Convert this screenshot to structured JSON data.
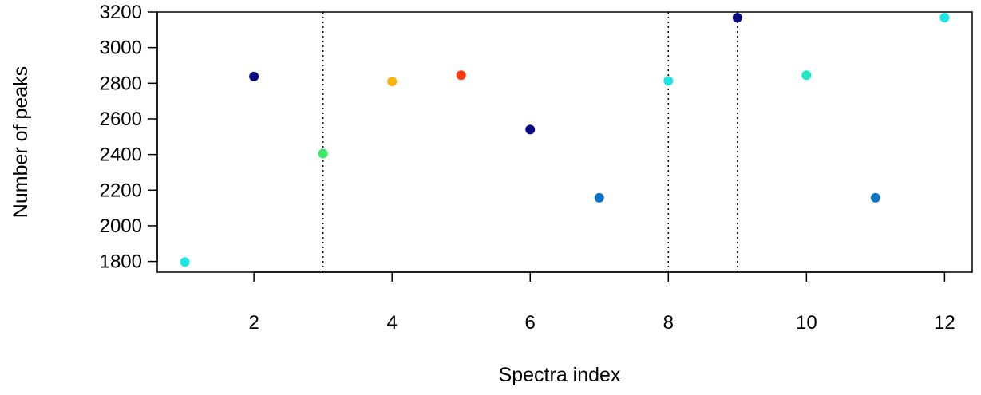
{
  "chart_data": {
    "type": "scatter",
    "title": "",
    "xlabel": "Spectra index",
    "ylabel": "Number of peaks",
    "xlim": [
      0.6,
      12.4
    ],
    "ylim": [
      1740,
      3200
    ],
    "x_ticks": [
      2,
      4,
      6,
      8,
      10,
      12
    ],
    "x_tick_labels": [
      "2",
      "4",
      "6",
      "8",
      "10",
      "12"
    ],
    "y_ticks": [
      1800,
      2000,
      2200,
      2400,
      2600,
      2800,
      3000,
      3200
    ],
    "y_tick_labels": [
      "1800",
      "2000",
      "2200",
      "2400",
      "2600",
      "2800",
      "3000",
      "3200"
    ],
    "vertical_reference_lines": [
      3,
      9,
      8
    ],
    "grid": false,
    "legend": "none",
    "points": [
      {
        "x": 1,
        "y": 1797,
        "color": "#1ee5e5"
      },
      {
        "x": 2,
        "y": 2838,
        "color": "#0a0a80"
      },
      {
        "x": 3,
        "y": 2405,
        "color": "#3ee86a"
      },
      {
        "x": 4,
        "y": 2810,
        "color": "#f7b50a"
      },
      {
        "x": 5,
        "y": 2845,
        "color": "#ff3a12"
      },
      {
        "x": 6,
        "y": 2540,
        "color": "#0a0a80"
      },
      {
        "x": 7,
        "y": 2157,
        "color": "#0a72c2"
      },
      {
        "x": 8,
        "y": 2813,
        "color": "#1ee5e5"
      },
      {
        "x": 9,
        "y": 3168,
        "color": "#0a0a80"
      },
      {
        "x": 10,
        "y": 2845,
        "color": "#1ee8c2"
      },
      {
        "x": 11,
        "y": 2157,
        "color": "#0a72c2"
      },
      {
        "x": 12,
        "y": 3168,
        "color": "#1ee5e5"
      }
    ]
  }
}
